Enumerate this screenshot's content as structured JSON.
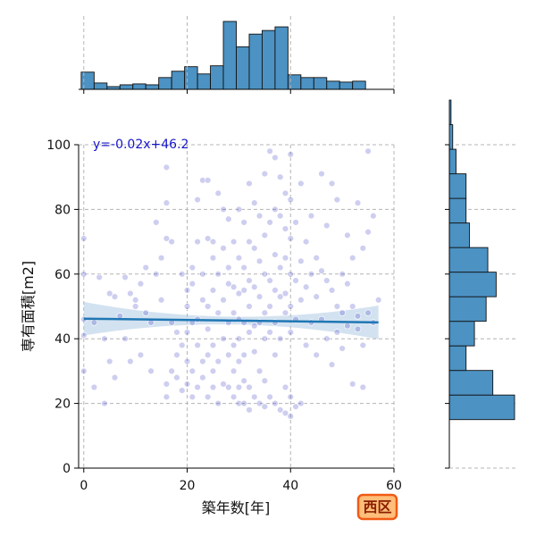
{
  "chart_data": {
    "type": "scatter",
    "title": "",
    "xlabel": "築年数[年]",
    "ylabel": "専有面積[m2]",
    "xlim": [
      -1,
      60
    ],
    "ylim": [
      0,
      100
    ],
    "xticks": [
      0,
      20,
      40,
      60
    ],
    "yticks": [
      0,
      20,
      40,
      60,
      80,
      100
    ],
    "grid": true,
    "annotation": "y=-0.02x+46.2",
    "badge": "西区",
    "regression": {
      "slope": -0.02,
      "intercept": 46.2,
      "x_range": [
        0,
        57
      ]
    },
    "series": [
      {
        "points": [
          [
            0,
            71
          ],
          [
            0,
            60
          ],
          [
            0,
            46
          ],
          [
            0,
            41
          ],
          [
            0,
            30
          ],
          [
            2,
            25
          ],
          [
            2,
            45
          ],
          [
            3,
            59
          ],
          [
            4,
            20
          ],
          [
            4,
            40
          ],
          [
            5,
            33
          ],
          [
            5,
            54
          ],
          [
            6,
            53
          ],
          [
            6,
            28
          ],
          [
            7,
            47
          ],
          [
            8,
            59
          ],
          [
            8,
            40
          ],
          [
            9,
            54
          ],
          [
            9,
            33
          ],
          [
            10,
            50
          ],
          [
            10,
            52
          ],
          [
            11,
            57
          ],
          [
            11,
            35
          ],
          [
            12,
            62
          ],
          [
            12,
            48
          ],
          [
            13,
            45
          ],
          [
            13,
            30
          ],
          [
            14,
            76
          ],
          [
            14,
            60
          ],
          [
            15,
            52
          ],
          [
            15,
            65
          ],
          [
            16,
            82
          ],
          [
            16,
            93
          ],
          [
            16,
            71
          ],
          [
            16,
            26
          ],
          [
            16,
            22
          ],
          [
            17,
            70
          ],
          [
            17,
            45
          ],
          [
            17,
            30
          ],
          [
            18,
            42
          ],
          [
            18,
            35
          ],
          [
            18,
            28
          ],
          [
            19,
            60
          ],
          [
            19,
            38
          ],
          [
            19,
            24
          ],
          [
            20,
            55
          ],
          [
            20,
            50
          ],
          [
            20,
            42
          ],
          [
            20,
            33
          ],
          [
            20,
            26
          ],
          [
            21,
            62
          ],
          [
            21,
            57
          ],
          [
            21,
            45
          ],
          [
            21,
            30
          ],
          [
            21,
            22
          ],
          [
            22,
            83
          ],
          [
            22,
            70
          ],
          [
            22,
            46
          ],
          [
            22,
            38
          ],
          [
            22,
            25
          ],
          [
            23,
            89
          ],
          [
            23,
            60
          ],
          [
            23,
            52
          ],
          [
            23,
            33
          ],
          [
            23,
            28
          ],
          [
            24,
            89
          ],
          [
            24,
            71
          ],
          [
            24,
            50
          ],
          [
            24,
            43
          ],
          [
            24,
            35
          ],
          [
            24,
            22
          ],
          [
            25,
            70
          ],
          [
            25,
            65
          ],
          [
            25,
            55
          ],
          [
            25,
            38
          ],
          [
            25,
            30
          ],
          [
            25,
            25
          ],
          [
            26,
            85
          ],
          [
            26,
            60
          ],
          [
            26,
            48
          ],
          [
            26,
            33
          ],
          [
            26,
            20
          ],
          [
            27,
            80
          ],
          [
            27,
            68
          ],
          [
            27,
            52
          ],
          [
            27,
            40
          ],
          [
            27,
            26
          ],
          [
            28,
            77
          ],
          [
            28,
            62
          ],
          [
            28,
            57
          ],
          [
            28,
            45
          ],
          [
            28,
            35
          ],
          [
            28,
            25
          ],
          [
            29,
            70
          ],
          [
            29,
            56
          ],
          [
            29,
            48
          ],
          [
            29,
            38
          ],
          [
            29,
            30
          ],
          [
            29,
            22
          ],
          [
            30,
            80
          ],
          [
            30,
            65
          ],
          [
            30,
            54
          ],
          [
            30,
            46
          ],
          [
            30,
            40
          ],
          [
            30,
            33
          ],
          [
            30,
            25
          ],
          [
            30,
            20
          ],
          [
            31,
            76
          ],
          [
            31,
            62
          ],
          [
            31,
            55
          ],
          [
            31,
            45
          ],
          [
            31,
            35
          ],
          [
            31,
            27
          ],
          [
            31,
            20
          ],
          [
            32,
            88
          ],
          [
            32,
            70
          ],
          [
            32,
            58
          ],
          [
            32,
            50
          ],
          [
            32,
            42
          ],
          [
            32,
            25
          ],
          [
            32,
            18
          ],
          [
            33,
            82
          ],
          [
            33,
            68
          ],
          [
            33,
            56
          ],
          [
            33,
            44
          ],
          [
            33,
            36
          ],
          [
            33,
            22
          ],
          [
            34,
            78
          ],
          [
            34,
            64
          ],
          [
            34,
            53
          ],
          [
            34,
            45
          ],
          [
            34,
            30
          ],
          [
            34,
            20
          ],
          [
            35,
            91
          ],
          [
            35,
            72
          ],
          [
            35,
            60
          ],
          [
            35,
            48
          ],
          [
            35,
            40
          ],
          [
            35,
            27
          ],
          [
            35,
            19
          ],
          [
            36,
            98
          ],
          [
            36,
            76
          ],
          [
            36,
            58
          ],
          [
            36,
            50
          ],
          [
            36,
            42
          ],
          [
            36,
            22
          ],
          [
            37,
            96
          ],
          [
            37,
            80
          ],
          [
            37,
            66
          ],
          [
            37,
            55
          ],
          [
            37,
            45
          ],
          [
            37,
            35
          ],
          [
            37,
            20
          ],
          [
            38,
            90
          ],
          [
            38,
            78
          ],
          [
            38,
            62
          ],
          [
            38,
            53
          ],
          [
            38,
            40
          ],
          [
            38,
            18
          ],
          [
            39,
            85
          ],
          [
            39,
            74
          ],
          [
            39,
            65
          ],
          [
            39,
            54
          ],
          [
            39,
            48
          ],
          [
            39,
            25
          ],
          [
            39,
            17
          ],
          [
            40,
            97
          ],
          [
            40,
            83
          ],
          [
            40,
            71
          ],
          [
            40,
            60
          ],
          [
            40,
            50
          ],
          [
            40,
            42
          ],
          [
            40,
            22
          ],
          [
            40,
            16
          ],
          [
            41,
            76
          ],
          [
            41,
            58
          ],
          [
            41,
            46
          ],
          [
            41,
            19
          ],
          [
            42,
            88
          ],
          [
            42,
            64
          ],
          [
            42,
            52
          ],
          [
            42,
            20
          ],
          [
            43,
            70
          ],
          [
            43,
            56
          ],
          [
            43,
            38
          ],
          [
            44,
            78
          ],
          [
            44,
            60
          ],
          [
            44,
            45
          ],
          [
            45,
            65
          ],
          [
            45,
            53
          ],
          [
            45,
            35
          ],
          [
            46,
            91
          ],
          [
            46,
            61
          ],
          [
            46,
            46
          ],
          [
            47,
            75
          ],
          [
            47,
            58
          ],
          [
            47,
            40
          ],
          [
            48,
            88
          ],
          [
            48,
            55
          ],
          [
            48,
            32
          ],
          [
            49,
            83
          ],
          [
            49,
            50
          ],
          [
            49,
            42
          ],
          [
            50,
            60
          ],
          [
            50,
            48
          ],
          [
            50,
            37
          ],
          [
            51,
            72
          ],
          [
            51,
            57
          ],
          [
            51,
            44
          ],
          [
            52,
            65
          ],
          [
            52,
            50
          ],
          [
            52,
            26
          ],
          [
            53,
            82
          ],
          [
            53,
            47
          ],
          [
            53,
            43
          ],
          [
            54,
            68
          ],
          [
            54,
            38
          ],
          [
            54,
            25
          ],
          [
            55,
            98
          ],
          [
            55,
            73
          ],
          [
            55,
            48
          ],
          [
            56,
            78
          ],
          [
            56,
            45
          ],
          [
            57,
            52
          ]
        ]
      }
    ],
    "marginal_x": {
      "type": "bar",
      "bin_start": -0.5,
      "bin_width": 2.5,
      "counts": [
        19,
        7,
        3,
        5,
        6,
        5,
        13,
        20,
        25,
        17,
        26,
        75,
        47,
        61,
        65,
        69,
        16,
        13,
        13,
        9,
        8,
        9
      ]
    },
    "marginal_y": {
      "type": "bar",
      "bin_start": 15,
      "bin_width": 7.6,
      "counts": [
        39,
        26,
        10,
        15,
        22,
        28,
        23,
        12,
        10,
        10,
        4,
        2,
        1
      ]
    }
  }
}
